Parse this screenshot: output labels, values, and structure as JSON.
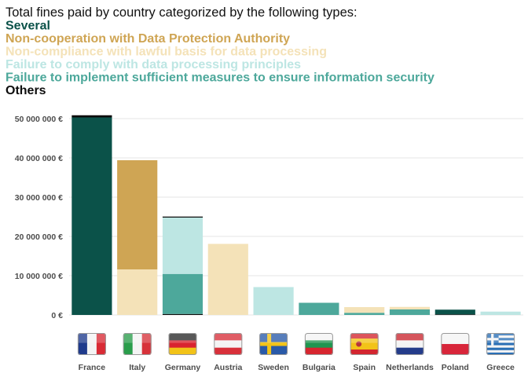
{
  "chart_data": {
    "type": "bar",
    "stacked": true,
    "title_lines": [
      {
        "text": "Total fines paid by country categorized by the following types:",
        "color": "#111111",
        "bold": false
      },
      {
        "text": "Several",
        "color": "#0b5249",
        "bold": true
      },
      {
        "text": "Non-cooperation with Data Protection Authority",
        "color": "#cfa554",
        "bold": true
      },
      {
        "text": "Non-compliance with lawful basis for data processing",
        "color": "#f4e2b8",
        "bold": true
      },
      {
        "text": "Failure to comply with data processing principles",
        "color": "#bde6e3",
        "bold": true
      },
      {
        "text": "Failure to implement sufficient measures to ensure information security",
        "color": "#4da89b",
        "bold": true
      },
      {
        "text": "Others",
        "color": "#0d0d0d",
        "bold": true
      }
    ],
    "categories": [
      "France",
      "Italy",
      "Germany",
      "Austria",
      "Sweden",
      "Bulgaria",
      "Spain",
      "Netherlands",
      "Poland",
      "Greece"
    ],
    "series": [
      {
        "name": "Others",
        "color": "#0d0d0d",
        "values": [
          0,
          0,
          250000,
          0,
          0,
          0,
          0,
          0,
          150000,
          0
        ]
      },
      {
        "name": "Failure to implement sufficient measures to ensure information security",
        "color": "#4da89b",
        "values": [
          0,
          0,
          10200000,
          0,
          0,
          3100000,
          550000,
          1400000,
          0,
          0
        ]
      },
      {
        "name": "Failure to comply with data processing principles",
        "color": "#bde6e3",
        "values": [
          0,
          0,
          14350000,
          0,
          7100000,
          0,
          0,
          0,
          0,
          850000
        ]
      },
      {
        "name": "Non-compliance with lawful basis for data processing",
        "color": "#f4e2b8",
        "values": [
          0,
          11600000,
          0,
          18100000,
          0,
          0,
          1450000,
          650000,
          0,
          0
        ]
      },
      {
        "name": "Non-cooperation with Data Protection Authority",
        "color": "#cfa554",
        "values": [
          0,
          27800000,
          0,
          0,
          0,
          0,
          0,
          0,
          0,
          0
        ]
      },
      {
        "name": "Several",
        "color": "#0b5249",
        "values": [
          50300000,
          0,
          0,
          0,
          0,
          0,
          0,
          0,
          1200000,
          0
        ]
      },
      {
        "name": "Others",
        "color": "#0d0d0d",
        "values": [
          550000,
          0,
          250000,
          0,
          0,
          0,
          0,
          0,
          0,
          0
        ]
      }
    ],
    "y_ticks": [
      0,
      10000000,
      20000000,
      30000000,
      40000000,
      50000000
    ],
    "y_tick_labels": [
      "0 €",
      "10 000 000 €",
      "20 000 000 €",
      "30 000 000 €",
      "40 000 000 €",
      "50 000 000 €"
    ],
    "ylim": [
      0,
      51000000
    ],
    "grid": "horizontal",
    "flags": [
      "france-flag-icon",
      "italy-flag-icon",
      "germany-flag-icon",
      "austria-flag-icon",
      "sweden-flag-icon",
      "bulgaria-flag-icon",
      "spain-flag-icon",
      "netherlands-flag-icon",
      "poland-flag-icon",
      "greece-flag-icon"
    ]
  }
}
